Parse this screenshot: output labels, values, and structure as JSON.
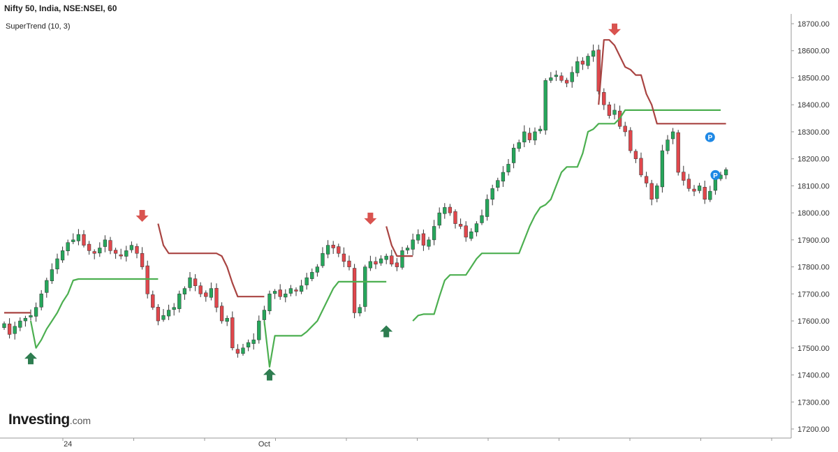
{
  "header": {
    "title": "Nifty 50, India, NSE:NSEI, 60",
    "indicator": "SuperTrend (10, 3)"
  },
  "logo": {
    "brand": "Investing",
    "suffix": ".com"
  },
  "colors": {
    "bull": "#26a65b",
    "bear": "#e0474c",
    "trend_up": "#4caf50",
    "trend_down": "#a94442",
    "arrow_up": "#2e7d50",
    "arrow_down": "#d9534f",
    "pivot": "#1e88e5"
  },
  "chart_data": {
    "type": "candlestick",
    "title": "Nifty 50, India, NSE:NSEI, 60",
    "indicator": "SuperTrend (10, 3)",
    "ylim": [
      17200,
      18700
    ],
    "y_ticks": [
      "17200.00",
      "17300.00",
      "17400.00",
      "17500.00",
      "17600.00",
      "17700.00",
      "17800.00",
      "17900.00",
      "18000.00",
      "18100.00",
      "18200.00",
      "18300.00",
      "18400.00",
      "18500.00",
      "18600.00",
      "18700.00"
    ],
    "x_labels": [
      {
        "label": "24",
        "index": 12
      },
      {
        "label": "Oct",
        "index": 49
      }
    ],
    "grid": false,
    "closes": [
      17590,
      17550,
      17580,
      17600,
      17610,
      17620,
      17650,
      17700,
      17750,
      17790,
      17830,
      17860,
      17890,
      17900,
      17920,
      17880,
      17860,
      17850,
      17870,
      17900,
      17860,
      17850,
      17840,
      17860,
      17880,
      17850,
      17800,
      17700,
      17650,
      17600,
      17620,
      17640,
      17650,
      17700,
      17720,
      17760,
      17730,
      17700,
      17690,
      17720,
      17650,
      17600,
      17610,
      17500,
      17480,
      17500,
      17520,
      17530,
      17600,
      17640,
      17700,
      17710,
      17690,
      17700,
      17720,
      17710,
      17730,
      17760,
      17780,
      17800,
      17850,
      17880,
      17870,
      17850,
      17820,
      17800,
      17630,
      17650,
      17800,
      17820,
      17810,
      17830,
      17840,
      17810,
      17800,
      17860,
      17870,
      17900,
      17920,
      17880,
      17900,
      17950,
      18000,
      18020,
      18000,
      17960,
      17950,
      17910,
      17930,
      17960,
      17990,
      18050,
      18090,
      18120,
      18150,
      18180,
      18240,
      18260,
      18300,
      18270,
      18300,
      18310,
      18490,
      18500,
      18510,
      18490,
      18480,
      18520,
      18560,
      18550,
      18580,
      18600,
      18450,
      18400,
      18360,
      18380,
      18320,
      18300,
      18230,
      18200,
      18140,
      18110,
      18050,
      18100,
      18230,
      18270,
      18300,
      18150,
      18120,
      18090,
      18080,
      18100,
      18050,
      18080,
      18130,
      18140,
      18160
    ],
    "supertrend": [
      {
        "from": 0,
        "to": 5,
        "trend": "down",
        "values": [
          17630,
          17630,
          17630,
          17630,
          17630,
          17630
        ]
      },
      {
        "from": 5,
        "to": 29,
        "trend": "up",
        "values": [
          17600,
          17500,
          17530,
          17570,
          17600,
          17630,
          17670,
          17700,
          17750,
          17755,
          17755,
          17755,
          17755,
          17755,
          17755,
          17755,
          17755,
          17755,
          17755,
          17755,
          17755,
          17755,
          17755,
          17755,
          17755
        ]
      },
      {
        "from": 29,
        "to": 49,
        "trend": "down",
        "values": [
          17960,
          17880,
          17850,
          17850,
          17850,
          17850,
          17850,
          17850,
          17850,
          17850,
          17850,
          17850,
          17840,
          17800,
          17740,
          17690,
          17690,
          17690,
          17690,
          17690,
          17690
        ]
      },
      {
        "from": 49,
        "to": 72,
        "trend": "up",
        "values": [
          17600,
          17430,
          17545,
          17545,
          17545,
          17545,
          17545,
          17545,
          17560,
          17580,
          17600,
          17640,
          17680,
          17720,
          17745,
          17745,
          17745,
          17745,
          17745,
          17745,
          17745,
          17745,
          17745,
          17745
        ]
      },
      {
        "from": 72,
        "to": 77,
        "trend": "down",
        "values": [
          17950,
          17880,
          17840,
          17840,
          17840,
          17840
        ]
      },
      {
        "from": 77,
        "to": 135,
        "trend": "up",
        "values": [
          17600,
          17620,
          17625,
          17625,
          17625,
          17690,
          17750,
          17770,
          17770,
          17770,
          17770,
          17800,
          17830,
          17850,
          17850,
          17850,
          17850,
          17850,
          17850,
          17850,
          17850,
          17900,
          17950,
          17990,
          18020,
          18030,
          18050,
          18100,
          18150,
          18170,
          18170,
          18170,
          18220,
          18300,
          18310,
          18330,
          18330,
          18330,
          18330,
          18350,
          18380,
          18380,
          18380,
          18380,
          18380,
          18380,
          18380,
          18380,
          18380,
          18380,
          18380,
          18380,
          18380,
          18380,
          18380,
          18380,
          18380,
          18380,
          18380
        ]
      },
      {
        "from": 112,
        "to": 125,
        "trend": "down",
        "values": [
          18400,
          18640,
          18640,
          18620,
          18580,
          18540,
          18530,
          18510,
          18510,
          18440,
          18400,
          18330,
          18330,
          18330
        ]
      },
      {
        "from": 125,
        "to": 136,
        "trend": "down",
        "values": [
          18330,
          18330,
          18330,
          18330,
          18330,
          18330,
          18330,
          18330,
          18330,
          18330,
          18330,
          18330
        ]
      }
    ],
    "signals": [
      {
        "index": 5,
        "type": "buy",
        "price": 17460
      },
      {
        "index": 26,
        "type": "sell",
        "price": 17990
      },
      {
        "index": 50,
        "type": "buy",
        "price": 17400
      },
      {
        "index": 69,
        "type": "sell",
        "price": 17980
      },
      {
        "index": 72,
        "type": "buy",
        "price": 17560
      },
      {
        "index": 115,
        "type": "sell",
        "price": 18680
      }
    ],
    "pivots": [
      {
        "index": 133,
        "price": 18280,
        "label": "P"
      },
      {
        "index": 134,
        "price": 18140,
        "label": "P"
      }
    ]
  }
}
